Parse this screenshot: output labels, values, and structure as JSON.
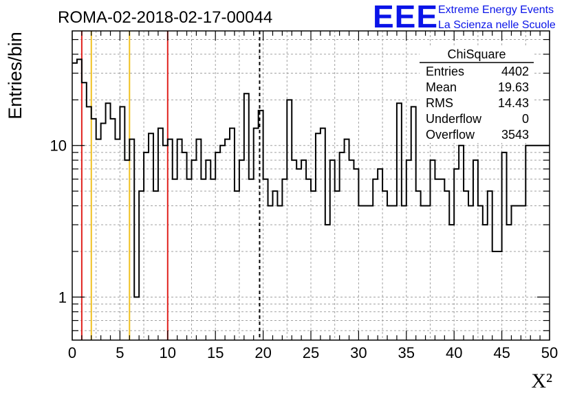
{
  "header": {
    "title": "ROMA-02-2018-02-17-00044",
    "logo_text": "EEE",
    "logo_line1": "Extreme Energy Events",
    "logo_line2": "La Scienza nelle Scuole"
  },
  "stats_box": {
    "title": "ChiSquare",
    "rows": [
      {
        "label": "Entries",
        "value": "4402"
      },
      {
        "label": "Mean",
        "value": "19.63"
      },
      {
        "label": "RMS",
        "value": "14.43"
      },
      {
        "label": "Underflow",
        "value": "0"
      },
      {
        "label": "Overflow",
        "value": "3543"
      }
    ]
  },
  "colors": {
    "red": "#e0201c",
    "yellow": "#f0c020",
    "grid": "#a0a0a0"
  },
  "chart_data": {
    "type": "bar",
    "style": "step-histogram",
    "ylabel": "Entries/bin",
    "xlabel": "X²",
    "xlim": [
      0,
      50
    ],
    "ylim": [
      0.52,
      57
    ],
    "yscale": "log",
    "grid": true,
    "bin_width": 0.5,
    "xticks": [
      0,
      5,
      10,
      15,
      20,
      25,
      30,
      35,
      40,
      45,
      50
    ],
    "yticks": [
      {
        "value": 1,
        "label": "1"
      },
      {
        "value": 10,
        "label": "10"
      }
    ],
    "values": [
      35,
      37,
      26,
      18,
      15,
      11,
      14,
      19,
      15,
      11,
      18,
      8,
      11,
      1,
      5,
      9,
      12,
      5,
      13,
      10,
      11,
      6,
      11,
      9,
      6,
      8,
      11,
      6,
      8,
      6,
      9,
      10,
      11,
      13,
      5,
      8,
      22,
      6,
      13,
      17,
      6,
      4,
      5,
      4,
      6,
      20,
      8,
      7,
      8,
      6,
      5,
      12,
      13,
      3,
      8,
      5,
      9,
      11,
      8,
      7,
      4,
      4,
      4,
      6,
      7,
      5,
      4,
      4,
      19,
      4,
      8,
      18,
      5,
      4,
      4,
      8,
      6,
      6,
      5,
      3,
      7,
      10,
      5,
      4,
      8,
      4,
      3,
      5,
      2,
      2,
      9,
      3,
      4,
      4,
      4,
      10,
      10,
      10,
      10,
      10
    ],
    "vertical_lines": [
      {
        "x": 1,
        "color": "red",
        "style": "solid"
      },
      {
        "x": 2,
        "color": "yellow",
        "style": "solid"
      },
      {
        "x": 6,
        "color": "yellow",
        "style": "solid"
      },
      {
        "x": 10,
        "color": "red",
        "style": "solid"
      },
      {
        "x": 19.63,
        "color": "black",
        "style": "dashed"
      }
    ]
  }
}
